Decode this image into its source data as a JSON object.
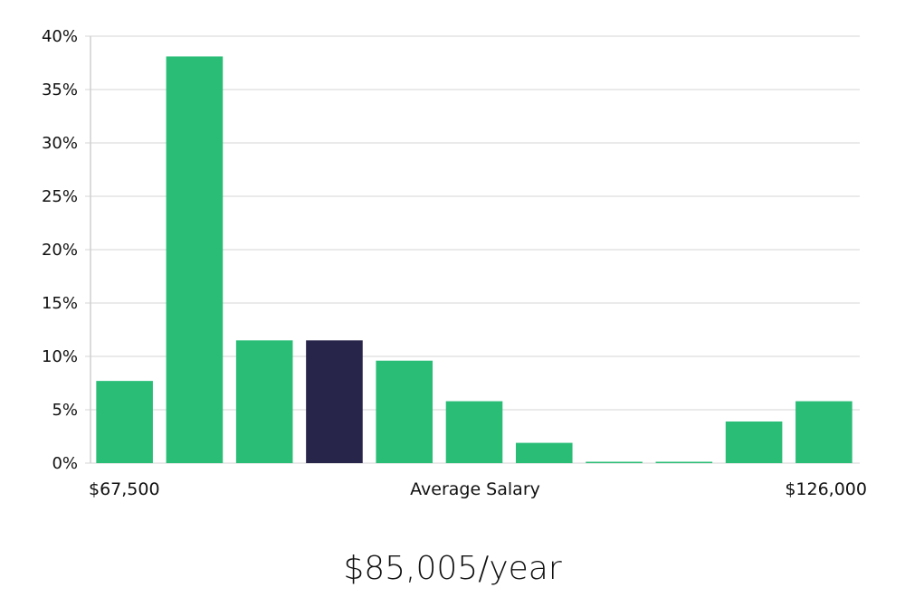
{
  "chart_data": {
    "type": "bar",
    "title": "",
    "xlabel": "Average Salary",
    "ylabel": "",
    "x_range_labels": {
      "min": "$67,500",
      "max": "$126,000"
    },
    "categories": [
      "1",
      "2",
      "3",
      "4",
      "5",
      "6",
      "7",
      "8",
      "9",
      "10",
      "11"
    ],
    "values": [
      7.7,
      38.1,
      11.5,
      11.5,
      9.6,
      5.8,
      1.9,
      0,
      0,
      3.9,
      5.8
    ],
    "highlight_index": 3,
    "ylim": [
      0,
      40
    ],
    "yticks": [
      0,
      5,
      10,
      15,
      20,
      25,
      30,
      35,
      40
    ],
    "ytick_suffix": "%",
    "grid": true,
    "colors": {
      "bar": "#29bd76",
      "highlight": "#28254a",
      "grid": "#e3e3e3",
      "axis": "#cfcfcf"
    }
  },
  "salary_text": "$85,005/year"
}
